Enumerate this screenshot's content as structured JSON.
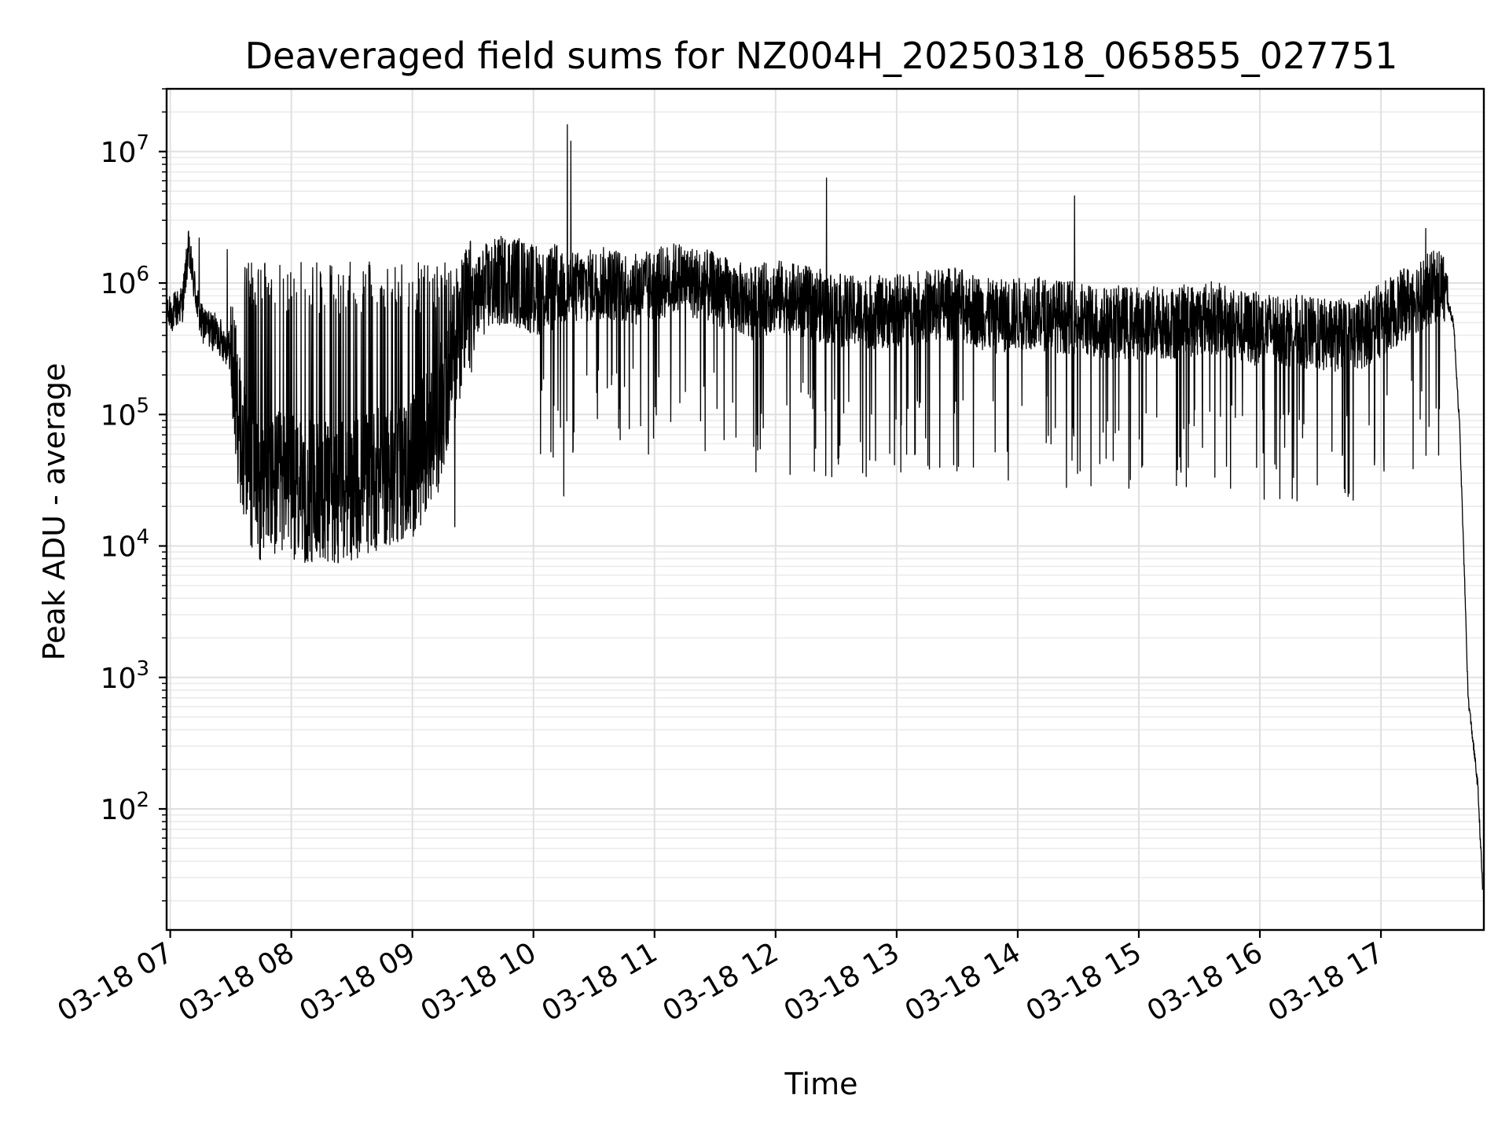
{
  "chart_data": {
    "type": "line",
    "title": "Deaveraged field sums for NZ004H_20250318_065855_027751",
    "xlabel": "Time",
    "ylabel": "Peak ADU - average",
    "yscale": "log",
    "ylim": [
      12,
      30000000
    ],
    "xlim": [
      6.97,
      17.85
    ],
    "grid": "on (major and minor)",
    "legend": "none",
    "line_color": "#000000",
    "x_ticks": [
      {
        "value": 7,
        "label": "03-18 07"
      },
      {
        "value": 8,
        "label": "03-18 08"
      },
      {
        "value": 9,
        "label": "03-18 09"
      },
      {
        "value": 10,
        "label": "03-18 10"
      },
      {
        "value": 11,
        "label": "03-18 11"
      },
      {
        "value": 12,
        "label": "03-18 12"
      },
      {
        "value": 13,
        "label": "03-18 13"
      },
      {
        "value": 14,
        "label": "03-18 14"
      },
      {
        "value": 15,
        "label": "03-18 15"
      },
      {
        "value": 16,
        "label": "03-18 16"
      },
      {
        "value": 17,
        "label": "03-18 17"
      }
    ],
    "y_ticks": [
      {
        "value": 100,
        "base": "10",
        "exp": "2"
      },
      {
        "value": 1000,
        "base": "10",
        "exp": "3"
      },
      {
        "value": 10000,
        "base": "10",
        "exp": "4"
      },
      {
        "value": 100000,
        "base": "10",
        "exp": "5"
      },
      {
        "value": 1000000,
        "base": "10",
        "exp": "6"
      },
      {
        "value": 10000000,
        "base": "10",
        "exp": "7"
      }
    ],
    "series": [
      {
        "x": [
          6.98,
          7.1,
          7.15,
          7.25,
          7.4,
          7.5,
          7.6,
          7.7,
          7.8,
          7.9,
          8.0,
          8.2,
          8.4,
          8.6,
          8.8,
          9.0,
          9.2,
          9.4,
          9.6,
          9.8,
          10.0,
          10.3,
          10.6,
          10.9,
          11.2,
          11.5,
          11.8,
          12.0,
          12.3,
          12.6,
          12.9,
          13.2,
          13.5,
          13.8,
          14.1,
          14.4,
          14.7,
          15.0,
          15.3,
          15.6,
          15.9,
          16.2,
          16.5,
          16.8,
          17.1,
          17.3,
          17.5,
          17.6,
          17.65,
          17.7,
          17.72,
          17.75,
          17.8,
          17.84
        ],
        "y": [
          550000,
          700000,
          1800000,
          500000,
          400000,
          300000,
          50000,
          30000,
          25000,
          30000,
          28000,
          25000,
          25000,
          30000,
          35000,
          40000,
          80000,
          500000,
          900000,
          1100000,
          900000,
          900000,
          1000000,
          900000,
          1100000,
          900000,
          700000,
          800000,
          700000,
          600000,
          600000,
          650000,
          700000,
          550000,
          600000,
          550000,
          500000,
          500000,
          500000,
          550000,
          450000,
          450000,
          400000,
          400000,
          600000,
          800000,
          1000000,
          500000,
          80000,
          3000,
          700,
          400,
          150,
          25
        ]
      }
    ],
    "notable_peaks": [
      {
        "x": 7.24,
        "y": 2200000
      },
      {
        "x": 7.47,
        "y": 1800000
      },
      {
        "x": 10.28,
        "y": 16000000
      },
      {
        "x": 10.31,
        "y": 12000000
      },
      {
        "x": 12.42,
        "y": 6300000
      },
      {
        "x": 14.47,
        "y": 4600000
      },
      {
        "x": 17.37,
        "y": 2600000
      }
    ],
    "notable_dips": [
      {
        "x": 7.83,
        "y": 11000
      },
      {
        "x": 9.35,
        "y": 14000
      },
      {
        "x": 12.12,
        "y": 35000
      },
      {
        "x": 12.72,
        "y": 36000
      },
      {
        "x": 10.25,
        "y": 24000
      }
    ]
  }
}
